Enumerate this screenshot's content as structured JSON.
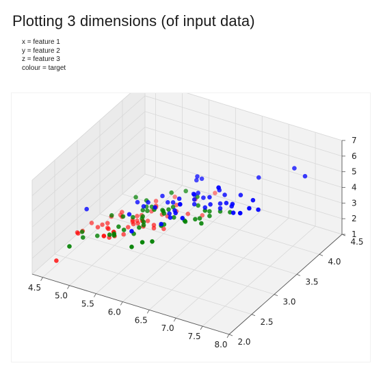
{
  "title": "Plotting 3 dimensions (of input data)",
  "notes": [
    "x = feature 1",
    "y = feature 2",
    "z = feature 3",
    "colour = target"
  ],
  "chart_data": {
    "type": "scatter3d",
    "xlabel": "",
    "ylabel": "",
    "zlabel": "",
    "xlim": [
      4.3,
      8.0
    ],
    "ylim": [
      2.0,
      4.5
    ],
    "zlim": [
      1.0,
      7.0
    ],
    "xticks": [
      "4.5",
      "5.0",
      "5.5",
      "6.0",
      "6.5",
      "7.0",
      "7.5",
      "8.0"
    ],
    "yticks": [
      "2.0",
      "2.5",
      "3.0",
      "3.5",
      "4.0",
      "4.5"
    ],
    "zticks": [
      "1",
      "2",
      "3",
      "4",
      "5",
      "6",
      "7"
    ],
    "grid": true,
    "colors": {
      "0": "#ff0000",
      "1": "#008000",
      "2": "#0000ff"
    },
    "series": [
      {
        "values": [
          [
            5.1,
            3.5,
            1.4
          ],
          [
            4.9,
            3.0,
            1.4
          ],
          [
            4.7,
            3.2,
            1.3
          ],
          [
            4.6,
            3.1,
            1.5
          ],
          [
            5.0,
            3.6,
            1.4
          ],
          [
            5.4,
            3.9,
            1.7
          ],
          [
            4.6,
            3.4,
            1.4
          ],
          [
            5.0,
            3.4,
            1.5
          ],
          [
            4.4,
            2.9,
            1.4
          ],
          [
            4.9,
            3.1,
            1.5
          ],
          [
            5.4,
            3.7,
            1.5
          ],
          [
            4.8,
            3.4,
            1.6
          ],
          [
            4.8,
            3.0,
            1.4
          ],
          [
            4.3,
            3.0,
            1.1
          ],
          [
            5.8,
            4.0,
            1.2
          ],
          [
            5.7,
            4.4,
            1.5
          ],
          [
            5.4,
            3.9,
            1.3
          ],
          [
            5.1,
            3.5,
            1.4
          ],
          [
            5.7,
            3.8,
            1.7
          ],
          [
            5.1,
            3.8,
            1.5
          ],
          [
            5.4,
            3.4,
            1.7
          ],
          [
            5.1,
            3.7,
            1.5
          ],
          [
            4.6,
            3.6,
            1.0
          ],
          [
            5.1,
            3.3,
            1.7
          ],
          [
            4.8,
            3.4,
            1.9
          ],
          [
            5.0,
            3.0,
            1.6
          ],
          [
            5.0,
            3.4,
            1.6
          ],
          [
            5.2,
            3.5,
            1.5
          ],
          [
            5.2,
            3.4,
            1.4
          ],
          [
            4.7,
            3.2,
            1.6
          ],
          [
            4.8,
            3.1,
            1.6
          ],
          [
            5.4,
            3.4,
            1.5
          ],
          [
            5.2,
            4.1,
            1.5
          ],
          [
            5.5,
            4.2,
            1.4
          ],
          [
            4.9,
            3.1,
            1.5
          ],
          [
            5.0,
            3.2,
            1.2
          ],
          [
            5.5,
            3.5,
            1.3
          ],
          [
            4.4,
            3.0,
            1.3
          ],
          [
            5.1,
            3.4,
            1.5
          ],
          [
            5.0,
            3.5,
            1.3
          ],
          [
            4.5,
            2.3,
            1.3
          ],
          [
            4.4,
            3.2,
            1.3
          ],
          [
            5.0,
            3.5,
            1.6
          ],
          [
            5.1,
            3.8,
            1.9
          ],
          [
            4.8,
            3.0,
            1.4
          ],
          [
            5.1,
            3.8,
            1.6
          ],
          [
            4.6,
            3.2,
            1.4
          ],
          [
            5.3,
            3.7,
            1.5
          ],
          [
            5.0,
            3.3,
            1.4
          ]
        ]
      },
      {
        "values": [
          [
            7.0,
            3.2,
            4.7
          ],
          [
            6.4,
            3.2,
            4.5
          ],
          [
            6.9,
            3.1,
            4.9
          ],
          [
            5.5,
            2.3,
            4.0
          ],
          [
            6.5,
            2.8,
            4.6
          ],
          [
            5.7,
            2.8,
            4.5
          ],
          [
            6.3,
            3.3,
            4.7
          ],
          [
            4.9,
            2.4,
            3.3
          ],
          [
            6.6,
            2.9,
            4.6
          ],
          [
            5.2,
            2.7,
            3.9
          ],
          [
            5.0,
            2.0,
            3.5
          ],
          [
            5.9,
            3.0,
            4.2
          ],
          [
            6.0,
            2.2,
            4.0
          ],
          [
            6.1,
            2.9,
            4.7
          ],
          [
            5.6,
            2.9,
            3.6
          ],
          [
            6.7,
            3.1,
            4.4
          ],
          [
            5.6,
            3.0,
            4.5
          ],
          [
            5.8,
            2.7,
            4.1
          ],
          [
            6.2,
            2.2,
            4.5
          ],
          [
            5.6,
            2.5,
            3.9
          ],
          [
            5.9,
            3.2,
            4.8
          ],
          [
            6.1,
            2.8,
            4.0
          ],
          [
            6.3,
            2.5,
            4.9
          ],
          [
            6.1,
            2.8,
            4.7
          ],
          [
            6.4,
            2.9,
            4.3
          ],
          [
            6.6,
            3.0,
            4.4
          ],
          [
            6.8,
            2.8,
            4.8
          ],
          [
            6.7,
            3.0,
            5.0
          ],
          [
            6.0,
            2.9,
            4.5
          ],
          [
            5.7,
            2.6,
            3.5
          ],
          [
            5.5,
            2.4,
            3.8
          ],
          [
            5.5,
            2.4,
            3.7
          ],
          [
            5.8,
            2.7,
            3.9
          ],
          [
            6.0,
            2.7,
            5.1
          ],
          [
            5.4,
            3.0,
            4.5
          ],
          [
            6.0,
            3.4,
            4.5
          ],
          [
            6.7,
            3.1,
            4.7
          ],
          [
            6.3,
            2.3,
            4.4
          ],
          [
            5.6,
            3.0,
            4.1
          ],
          [
            5.5,
            2.5,
            4.0
          ],
          [
            5.5,
            2.6,
            4.4
          ],
          [
            6.1,
            3.0,
            4.6
          ],
          [
            5.8,
            2.6,
            4.0
          ],
          [
            5.0,
            2.3,
            3.3
          ],
          [
            5.6,
            2.7,
            4.2
          ],
          [
            5.7,
            3.0,
            4.2
          ],
          [
            5.7,
            2.9,
            4.2
          ],
          [
            6.2,
            2.9,
            4.3
          ],
          [
            5.1,
            2.5,
            3.0
          ],
          [
            5.7,
            2.8,
            4.1
          ]
        ]
      },
      {
        "values": [
          [
            6.3,
            3.3,
            6.0
          ],
          [
            5.8,
            2.7,
            5.1
          ],
          [
            7.1,
            3.0,
            5.9
          ],
          [
            6.3,
            2.9,
            5.6
          ],
          [
            6.5,
            3.0,
            5.8
          ],
          [
            7.6,
            3.0,
            6.6
          ],
          [
            4.9,
            2.5,
            4.5
          ],
          [
            7.3,
            2.9,
            6.3
          ],
          [
            6.7,
            2.5,
            5.8
          ],
          [
            7.2,
            3.6,
            6.1
          ],
          [
            6.5,
            3.2,
            5.1
          ],
          [
            6.4,
            2.7,
            5.3
          ],
          [
            6.8,
            3.0,
            5.5
          ],
          [
            5.7,
            2.5,
            5.0
          ],
          [
            5.8,
            2.8,
            5.1
          ],
          [
            6.4,
            3.2,
            5.3
          ],
          [
            6.5,
            3.0,
            5.5
          ],
          [
            7.7,
            3.8,
            6.7
          ],
          [
            7.7,
            2.6,
            6.9
          ],
          [
            6.0,
            2.2,
            5.0
          ],
          [
            6.9,
            3.2,
            5.7
          ],
          [
            5.6,
            2.8,
            4.9
          ],
          [
            7.7,
            2.8,
            6.7
          ],
          [
            6.3,
            2.7,
            4.9
          ],
          [
            6.7,
            3.3,
            5.7
          ],
          [
            7.2,
            3.2,
            6.0
          ],
          [
            6.2,
            2.8,
            4.8
          ],
          [
            6.1,
            3.0,
            4.9
          ],
          [
            6.4,
            2.8,
            5.6
          ],
          [
            7.2,
            3.0,
            5.8
          ],
          [
            7.4,
            2.8,
            6.1
          ],
          [
            7.9,
            3.8,
            6.4
          ],
          [
            6.4,
            2.8,
            5.6
          ],
          [
            6.3,
            2.8,
            5.1
          ],
          [
            6.1,
            2.6,
            5.6
          ],
          [
            7.7,
            3.0,
            6.1
          ],
          [
            6.3,
            3.4,
            5.6
          ],
          [
            6.4,
            3.1,
            5.5
          ],
          [
            6.0,
            3.0,
            4.8
          ],
          [
            6.9,
            3.1,
            5.4
          ],
          [
            6.7,
            3.1,
            5.6
          ],
          [
            6.9,
            3.1,
            5.1
          ],
          [
            6.8,
            3.2,
            5.9
          ],
          [
            6.7,
            3.3,
            5.7
          ],
          [
            6.7,
            3.0,
            5.2
          ],
          [
            6.3,
            2.5,
            5.0
          ],
          [
            6.5,
            3.0,
            5.2
          ],
          [
            6.2,
            3.4,
            5.4
          ],
          [
            5.9,
            3.0,
            5.1
          ]
        ]
      }
    ]
  }
}
